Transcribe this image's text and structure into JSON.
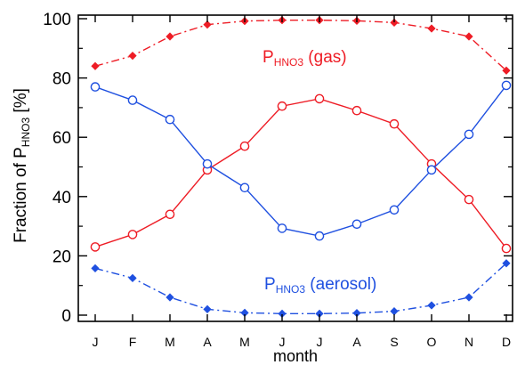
{
  "chart_data": {
    "type": "line",
    "title": "",
    "xlabel": "month",
    "ylabel_main": "Fraction of P",
    "ylabel_sub": "HNO3",
    "ylabel_unit": " [%]",
    "categories": [
      "J",
      "F",
      "M",
      "A",
      "M",
      "J",
      "J",
      "A",
      "S",
      "O",
      "N",
      "D"
    ],
    "yticks": [
      "0",
      "20",
      "40",
      "60",
      "80",
      "100"
    ],
    "ylim": [
      0,
      100
    ],
    "grid": false,
    "colors": {
      "red": "#ee1c25",
      "blue": "#1f50e0",
      "axis": "#000000"
    },
    "annotations": [
      {
        "main": "P",
        "sub": "HNO3",
        "rest": " (gas)",
        "color": "#ee1c25"
      },
      {
        "main": "P",
        "sub": "HNO3",
        "rest": " (aerosol)",
        "color": "#1f50e0"
      }
    ],
    "series": [
      {
        "color": "#ee1c25",
        "marker": "diamond",
        "dash": "dashdot",
        "values": [
          84,
          87.5,
          94,
          98,
          99.2,
          99.5,
          99.5,
          99.3,
          98.7,
          96.7,
          94,
          82.5
        ]
      },
      {
        "color": "#1f50e0",
        "marker": "diamond",
        "dash": "dashdot",
        "values": [
          15.8,
          12.5,
          6,
          2,
          0.8,
          0.5,
          0.5,
          0.7,
          1.3,
          3.3,
          6,
          17.5
        ]
      },
      {
        "color": "#ee1c25",
        "marker": "circle",
        "dash": "solid",
        "values": [
          23,
          27.2,
          34,
          49,
          57,
          70.5,
          73,
          69,
          64.5,
          51,
          39,
          22.5
        ]
      },
      {
        "color": "#1f50e0",
        "marker": "circle",
        "dash": "solid",
        "values": [
          77,
          72.5,
          66,
          51,
          43,
          29.3,
          26.7,
          30.7,
          35.5,
          49,
          61,
          77.5
        ]
      }
    ]
  }
}
